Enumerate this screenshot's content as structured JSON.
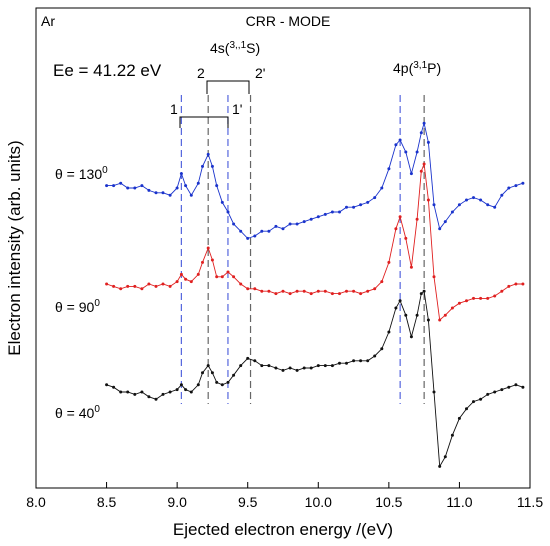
{
  "chart_data": {
    "type": "line",
    "xlabel": "Ejected electron energy /(eV)",
    "ylabel": "Electron intensity (arb. units)",
    "xlim": [
      8.0,
      11.5
    ],
    "ylim": [
      0,
      1
    ],
    "xticks": [
      "8.0",
      "8.5",
      "9.0",
      "9.5",
      "10.0",
      "10.5",
      "11.0",
      "11.5"
    ],
    "grid": false,
    "annotations": {
      "corner_label": "Ar",
      "mode": "CRR - MODE",
      "energy": "Ee = 41.22 eV",
      "state_4s": "4s(3,,1S)",
      "state_4p": "4p(3,1P)",
      "marker_1": "1",
      "marker_1p": "1'",
      "marker_2": "2",
      "marker_2p": "2'"
    },
    "marker_lines": [
      {
        "x": 9.03,
        "color": "#5566dd"
      },
      {
        "x": 9.22,
        "color": "#666666"
      },
      {
        "x": 9.36,
        "color": "#5566dd"
      },
      {
        "x": 9.52,
        "color": "#666666"
      },
      {
        "x": 10.58,
        "color": "#5566dd"
      },
      {
        "x": 10.75,
        "color": "#666666"
      }
    ],
    "series": [
      {
        "label": "θ = 130°",
        "label_text": "θ = 130",
        "label_sup": "0",
        "color": "#1a33cc",
        "points": [
          [
            8.5,
            0.63
          ],
          [
            8.55,
            0.63
          ],
          [
            8.6,
            0.635
          ],
          [
            8.65,
            0.625
          ],
          [
            8.7,
            0.625
          ],
          [
            8.75,
            0.63
          ],
          [
            8.8,
            0.62
          ],
          [
            8.85,
            0.615
          ],
          [
            8.9,
            0.615
          ],
          [
            8.95,
            0.61
          ],
          [
            9.0,
            0.625
          ],
          [
            9.03,
            0.655
          ],
          [
            9.06,
            0.63
          ],
          [
            9.1,
            0.61
          ],
          [
            9.15,
            0.635
          ],
          [
            9.18,
            0.67
          ],
          [
            9.22,
            0.695
          ],
          [
            9.25,
            0.67
          ],
          [
            9.28,
            0.63
          ],
          [
            9.32,
            0.595
          ],
          [
            9.36,
            0.575
          ],
          [
            9.4,
            0.55
          ],
          [
            9.45,
            0.535
          ],
          [
            9.5,
            0.52
          ],
          [
            9.55,
            0.525
          ],
          [
            9.6,
            0.535
          ],
          [
            9.65,
            0.535
          ],
          [
            9.7,
            0.545
          ],
          [
            9.75,
            0.54
          ],
          [
            9.8,
            0.55
          ],
          [
            9.85,
            0.55
          ],
          [
            9.9,
            0.555
          ],
          [
            9.95,
            0.56
          ],
          [
            10.0,
            0.565
          ],
          [
            10.05,
            0.57
          ],
          [
            10.1,
            0.575
          ],
          [
            10.15,
            0.575
          ],
          [
            10.2,
            0.585
          ],
          [
            10.25,
            0.585
          ],
          [
            10.3,
            0.59
          ],
          [
            10.35,
            0.595
          ],
          [
            10.4,
            0.605
          ],
          [
            10.45,
            0.625
          ],
          [
            10.5,
            0.665
          ],
          [
            10.55,
            0.715
          ],
          [
            10.58,
            0.725
          ],
          [
            10.62,
            0.7
          ],
          [
            10.66,
            0.655
          ],
          [
            10.7,
            0.7
          ],
          [
            10.73,
            0.74
          ],
          [
            10.75,
            0.76
          ],
          [
            10.78,
            0.72
          ],
          [
            10.82,
            0.59
          ],
          [
            10.86,
            0.54
          ],
          [
            10.9,
            0.555
          ],
          [
            10.95,
            0.575
          ],
          [
            11.0,
            0.59
          ],
          [
            11.05,
            0.6
          ],
          [
            11.1,
            0.605
          ],
          [
            11.15,
            0.6
          ],
          [
            11.2,
            0.59
          ],
          [
            11.25,
            0.585
          ],
          [
            11.3,
            0.61
          ],
          [
            11.35,
            0.625
          ],
          [
            11.4,
            0.63
          ],
          [
            11.45,
            0.635
          ]
        ]
      },
      {
        "label": "θ = 90°",
        "label_text": "θ = 90",
        "label_sup": "0",
        "color": "#e02020",
        "points": [
          [
            8.5,
            0.425
          ],
          [
            8.55,
            0.42
          ],
          [
            8.6,
            0.415
          ],
          [
            8.65,
            0.42
          ],
          [
            8.7,
            0.42
          ],
          [
            8.75,
            0.415
          ],
          [
            8.8,
            0.425
          ],
          [
            8.85,
            0.42
          ],
          [
            8.9,
            0.425
          ],
          [
            8.95,
            0.42
          ],
          [
            9.0,
            0.43
          ],
          [
            9.03,
            0.445
          ],
          [
            9.06,
            0.435
          ],
          [
            9.1,
            0.43
          ],
          [
            9.15,
            0.445
          ],
          [
            9.18,
            0.47
          ],
          [
            9.22,
            0.5
          ],
          [
            9.25,
            0.475
          ],
          [
            9.28,
            0.44
          ],
          [
            9.32,
            0.44
          ],
          [
            9.36,
            0.45
          ],
          [
            9.4,
            0.44
          ],
          [
            9.45,
            0.425
          ],
          [
            9.5,
            0.415
          ],
          [
            9.55,
            0.415
          ],
          [
            9.6,
            0.41
          ],
          [
            9.65,
            0.41
          ],
          [
            9.7,
            0.405
          ],
          [
            9.75,
            0.41
          ],
          [
            9.8,
            0.405
          ],
          [
            9.85,
            0.41
          ],
          [
            9.9,
            0.41
          ],
          [
            9.95,
            0.405
          ],
          [
            10.0,
            0.41
          ],
          [
            10.05,
            0.41
          ],
          [
            10.1,
            0.405
          ],
          [
            10.15,
            0.405
          ],
          [
            10.2,
            0.41
          ],
          [
            10.25,
            0.41
          ],
          [
            10.3,
            0.405
          ],
          [
            10.35,
            0.41
          ],
          [
            10.4,
            0.415
          ],
          [
            10.45,
            0.43
          ],
          [
            10.5,
            0.47
          ],
          [
            10.55,
            0.54
          ],
          [
            10.58,
            0.565
          ],
          [
            10.62,
            0.52
          ],
          [
            10.66,
            0.46
          ],
          [
            10.7,
            0.56
          ],
          [
            10.73,
            0.66
          ],
          [
            10.75,
            0.675
          ],
          [
            10.78,
            0.6
          ],
          [
            10.82,
            0.44
          ],
          [
            10.86,
            0.35
          ],
          [
            10.9,
            0.36
          ],
          [
            10.95,
            0.375
          ],
          [
            11.0,
            0.385
          ],
          [
            11.05,
            0.39
          ],
          [
            11.1,
            0.395
          ],
          [
            11.15,
            0.395
          ],
          [
            11.2,
            0.395
          ],
          [
            11.25,
            0.4
          ],
          [
            11.3,
            0.41
          ],
          [
            11.35,
            0.42
          ],
          [
            11.4,
            0.425
          ],
          [
            11.45,
            0.425
          ]
        ]
      },
      {
        "label": "θ = 40°",
        "label_text": "θ = 40",
        "label_sup": "0",
        "color": "#111111",
        "points": [
          [
            8.5,
            0.215
          ],
          [
            8.55,
            0.21
          ],
          [
            8.6,
            0.2
          ],
          [
            8.65,
            0.2
          ],
          [
            8.7,
            0.195
          ],
          [
            8.75,
            0.2
          ],
          [
            8.8,
            0.19
          ],
          [
            8.85,
            0.185
          ],
          [
            8.9,
            0.195
          ],
          [
            8.95,
            0.2
          ],
          [
            9.0,
            0.205
          ],
          [
            9.03,
            0.215
          ],
          [
            9.06,
            0.205
          ],
          [
            9.1,
            0.2
          ],
          [
            9.15,
            0.215
          ],
          [
            9.18,
            0.24
          ],
          [
            9.22,
            0.255
          ],
          [
            9.25,
            0.24
          ],
          [
            9.28,
            0.22
          ],
          [
            9.32,
            0.215
          ],
          [
            9.36,
            0.22
          ],
          [
            9.4,
            0.235
          ],
          [
            9.45,
            0.255
          ],
          [
            9.5,
            0.27
          ],
          [
            9.55,
            0.265
          ],
          [
            9.6,
            0.255
          ],
          [
            9.65,
            0.255
          ],
          [
            9.7,
            0.25
          ],
          [
            9.75,
            0.245
          ],
          [
            9.8,
            0.25
          ],
          [
            9.85,
            0.245
          ],
          [
            9.9,
            0.25
          ],
          [
            9.95,
            0.25
          ],
          [
            10.0,
            0.255
          ],
          [
            10.05,
            0.255
          ],
          [
            10.1,
            0.255
          ],
          [
            10.15,
            0.26
          ],
          [
            10.2,
            0.26
          ],
          [
            10.25,
            0.265
          ],
          [
            10.3,
            0.265
          ],
          [
            10.35,
            0.265
          ],
          [
            10.4,
            0.275
          ],
          [
            10.45,
            0.29
          ],
          [
            10.5,
            0.325
          ],
          [
            10.55,
            0.375
          ],
          [
            10.58,
            0.39
          ],
          [
            10.62,
            0.36
          ],
          [
            10.66,
            0.315
          ],
          [
            10.7,
            0.36
          ],
          [
            10.73,
            0.405
          ],
          [
            10.75,
            0.41
          ],
          [
            10.78,
            0.35
          ],
          [
            10.82,
            0.2
          ],
          [
            10.86,
            0.045
          ],
          [
            10.9,
            0.065
          ],
          [
            10.95,
            0.11
          ],
          [
            11.0,
            0.145
          ],
          [
            11.05,
            0.165
          ],
          [
            11.1,
            0.18
          ],
          [
            11.15,
            0.185
          ],
          [
            11.2,
            0.195
          ],
          [
            11.25,
            0.2
          ],
          [
            11.3,
            0.205
          ],
          [
            11.35,
            0.21
          ],
          [
            11.4,
            0.215
          ],
          [
            11.45,
            0.21
          ]
        ]
      }
    ]
  }
}
